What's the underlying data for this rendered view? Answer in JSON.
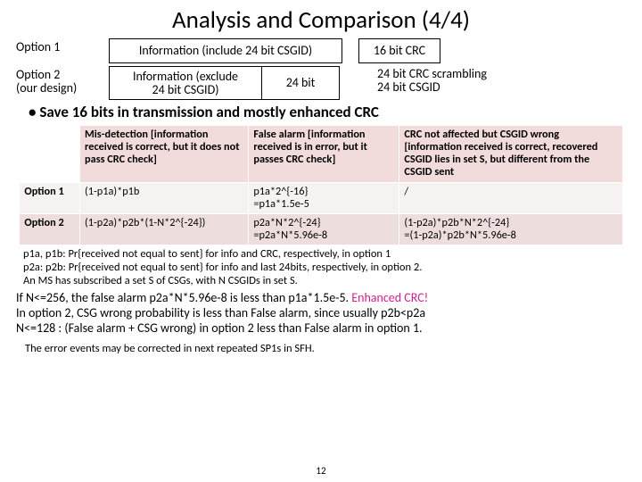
{
  "title": "Analysis and Comparison (4/4)",
  "opt1": {
    "label": "Option 1",
    "info": "Information (include 24 bit CSGID)",
    "crc": "16 bit CRC"
  },
  "opt2": {
    "label_l1": "Option 2",
    "label_l2": "(our design)",
    "info_l1": "Information (exclude",
    "info_l2": "24 bit CSGID)",
    "bits": "24 bit",
    "note_l1": "24 bit CRC scrambling",
    "note_l2": "24 bit CSGID"
  },
  "bullet": "Save 16 bits in transmission and mostly enhanced CRC",
  "table": {
    "head": {
      "c0": "",
      "c1": "Mis-detection [information received is correct, but it does not pass CRC check]",
      "c2": "False alarm [information received is in error, but it passes CRC check]",
      "c3": "CRC not affected but CSGID wrong [information received is correct, recovered CSGID lies in set S, but different from the CSGID sent"
    },
    "r1": {
      "c0": "Option 1",
      "c1": "(1-p1a)*p1b",
      "c2_l1": " p1a*2^{-16}",
      "c2_l2": "=p1a*1.5e-5",
      "c3": "/"
    },
    "r2": {
      "c0": "Option 2",
      "c1": "(1-p2a)*p2b*(1-N*2^{-24})",
      "c2_l1": "p2a*N*2^{-24}",
      "c2_l2": "=p2a*N*5.96e-8",
      "c3_l1": "(1-p2a)*p2b*N*2^{-24}",
      "c3_l2": "=(1-p2a)*p2b*N*5.96e-8"
    }
  },
  "notes": {
    "l1": "p1a, p1b: Pr{received not equal to sent} for info and CRC, respectively, in option 1",
    "l2": "p2a: p2b: Pr{received not equal to sent} for info and last 24bits, respectively, in option 2.",
    "l3": "An MS has subscribed a set S of CSGs, with N CSGIDs in set S."
  },
  "conclusion": {
    "l1a": "If N<=256, the false alarm p2a*N*5.96e-8 is less than p1a*1.5e-5. ",
    "l1b": "Enhanced CRC!",
    "l2": "In option 2, CSG wrong probability is less than False alarm, since usually p2b<p2a",
    "l3": "N<=128 : (False alarm + CSG wrong) in option 2 less than False alarm in option 1."
  },
  "footnote": "The error events may be corrected in next repeated SP1s in SFH.",
  "pagenum": "12"
}
